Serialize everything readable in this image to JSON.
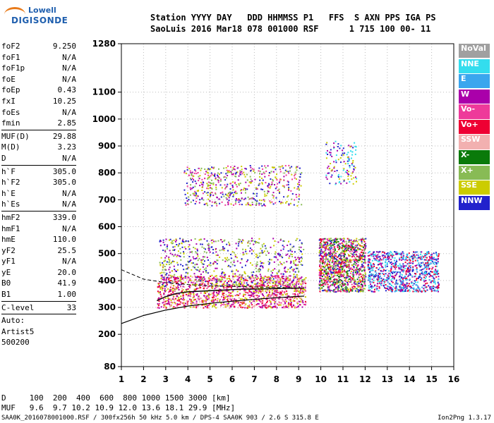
{
  "logo": {
    "line1": "Lowell",
    "line2": "DIGISONDE"
  },
  "header": {
    "labels": "Station YYYY DAY   DDD HHMMSS P1   FFS  S AXN PPS IGA PS",
    "values": "SaoLuis 2016 Mar18 078 001000 RSF      1 715 100 00- 11"
  },
  "params": {
    "group1": [
      {
        "k": "foF2",
        "v": "9.250"
      },
      {
        "k": "foF1",
        "v": "N/A"
      },
      {
        "k": "foF1p",
        "v": "N/A"
      },
      {
        "k": "foE",
        "v": "N/A"
      },
      {
        "k": "foEp",
        "v": "0.43"
      },
      {
        "k": "fxI",
        "v": "10.25"
      },
      {
        "k": "foEs",
        "v": "N/A"
      },
      {
        "k": "fmin",
        "v": "2.85"
      }
    ],
    "group2": [
      {
        "k": "MUF(D)",
        "v": "29.88"
      },
      {
        "k": "M(D)",
        "v": "3.23"
      },
      {
        "k": "D",
        "v": "N/A"
      }
    ],
    "group3": [
      {
        "k": "h`F",
        "v": "305.0"
      },
      {
        "k": "h`F2",
        "v": "305.0"
      },
      {
        "k": "h`E",
        "v": "N/A"
      },
      {
        "k": "h`Es",
        "v": "N/A"
      }
    ],
    "group4": [
      {
        "k": "hmF2",
        "v": "339.0"
      },
      {
        "k": "hmF1",
        "v": "N/A"
      },
      {
        "k": "hmE",
        "v": "110.0"
      },
      {
        "k": "yF2",
        "v": "25.5"
      },
      {
        "k": "yF1",
        "v": "N/A"
      },
      {
        "k": "yE",
        "v": "20.0"
      },
      {
        "k": "B0",
        "v": "41.9"
      },
      {
        "k": "B1",
        "v": "1.00"
      }
    ],
    "clevel": {
      "k": "C-level",
      "v": "33"
    },
    "auto": [
      "Auto:",
      "Artist5",
      "500200"
    ]
  },
  "legend": [
    {
      "label": "NoVal",
      "color": "#a0a0a0"
    },
    {
      "label": "NNE",
      "color": "#33ddee"
    },
    {
      "label": "E",
      "color": "#3aa6ee"
    },
    {
      "label": "W",
      "color": "#aa00aa"
    },
    {
      "label": "Vo-",
      "color": "#ee3a9a"
    },
    {
      "label": "Vo+",
      "color": "#ee0033"
    },
    {
      "label": "SSW",
      "color": "#f2b0b0"
    },
    {
      "label": "X-",
      "color": "#0a7a0a"
    },
    {
      "label": "X+",
      "color": "#88bb55"
    },
    {
      "label": "SSE",
      "color": "#cccc00"
    },
    {
      "label": "NNW",
      "color": "#2222cc"
    }
  ],
  "footer": {
    "line1": "D     100  200  400  600  800 1000 1500 3000 [km]",
    "line2": "MUF   9.6  9.7 10.2 10.9 12.0 13.6 18.1 29.9 [MHz]",
    "line3": "SAA0K_2016078001000.RSF / 300fx256h 50 kHz 5.0 km / DPS-4 SAA0K 903 / 2.6 S 315.8 E",
    "version": "Ion2Png 1.3.17"
  },
  "chart_data": {
    "type": "scatter",
    "xlim": [
      1,
      16
    ],
    "ylim": [
      80,
      1280
    ],
    "xticks": [
      1,
      2,
      3,
      4,
      5,
      6,
      7,
      8,
      9,
      10,
      11,
      12,
      13,
      14,
      15,
      16
    ],
    "yticks": [
      80,
      200,
      300,
      400,
      500,
      600,
      700,
      800,
      900,
      1000,
      1100,
      1280
    ],
    "trace_f2": {
      "x": [
        2.6,
        3.0,
        3.5,
        4.0,
        4.5,
        5.0,
        5.5,
        6.0,
        6.5,
        7.0,
        7.5,
        8.0,
        8.5,
        9.0,
        9.25
      ],
      "y": [
        325,
        340,
        352,
        358,
        360,
        362,
        364,
        366,
        368,
        368,
        369,
        370,
        371,
        372,
        372
      ]
    },
    "profile": {
      "x": [
        1.0,
        2.0,
        3.0,
        4.0,
        5.0,
        6.0,
        7.0,
        8.0,
        9.0,
        9.25
      ],
      "y": [
        240,
        270,
        290,
        305,
        315,
        323,
        330,
        336,
        341,
        342
      ]
    },
    "dashed_profile": {
      "x": [
        1.0,
        2.0,
        3.0,
        4.0,
        5.0,
        6.0,
        7.0,
        8.0,
        9.0,
        9.25
      ],
      "y": [
        440,
        405,
        392,
        385,
        380,
        378,
        376,
        374,
        372,
        372
      ]
    }
  }
}
